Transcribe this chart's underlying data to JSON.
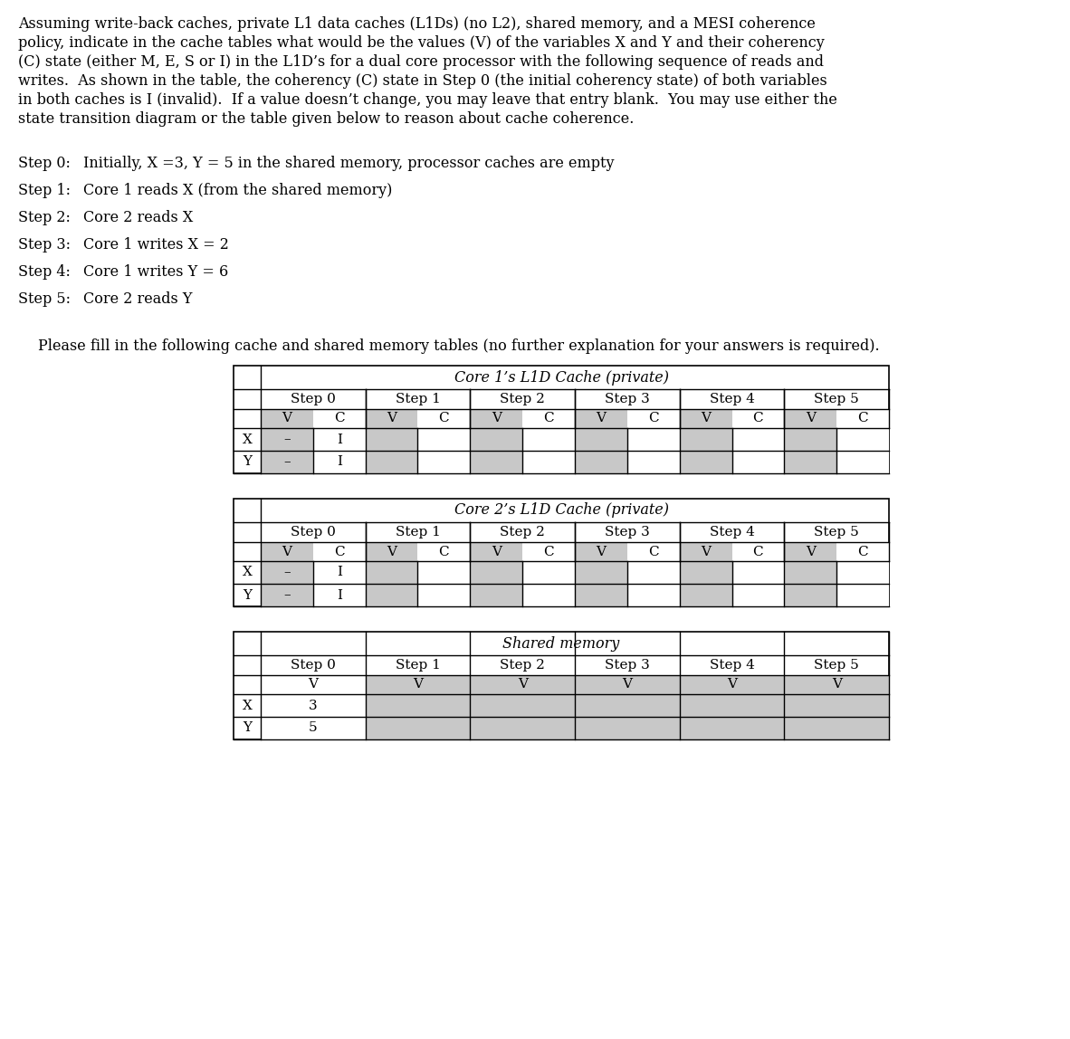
{
  "paragraph_lines": [
    "Assuming write-back caches, private L1 data caches (L1Ds) (no L2), shared memory, and a MESI coherence",
    "policy, indicate in the cache tables what would be the values (V) of the variables X and Y and their coherency",
    "(C) state (either M, E, S or I) in the L1D’s for a dual core processor with the following sequence of reads and",
    "writes.  As shown in the table, the coherency (C) state in Step 0 (the initial coherency state) of both variables",
    "in both caches is I (invalid).  If a value doesn’t change, you may leave that entry blank.  You may use either the",
    "state transition diagram or the table given below to reason about cache coherence."
  ],
  "steps": [
    [
      "Step 0:",
      "Initially, X =3, Y = 5 in the shared memory, processor caches are empty"
    ],
    [
      "Step 1:",
      "Core 1 reads X (from the shared memory)"
    ],
    [
      "Step 2:",
      "Core 2 reads X"
    ],
    [
      "Step 3:",
      "Core 1 writes X = 2"
    ],
    [
      "Step 4:",
      "Core 1 writes Y = 6"
    ],
    [
      "Step 5:",
      "Core 2 reads Y"
    ]
  ],
  "please_text": "Please fill in the following cache and shared memory tables (no further explanation for your answers is required).",
  "table1_title": "Core 1’s L1D Cache (private)",
  "table2_title": "Core 2’s L1D Cache (private)",
  "table3_title": "Shared memory",
  "step_labels": [
    "Step 0",
    "Step 1",
    "Step 2",
    "Step 3",
    "Step 4",
    "Step 5"
  ],
  "row_labels": [
    "X",
    "Y"
  ],
  "shared_step0": [
    "3",
    "5"
  ],
  "gray_color": "#c8c8c8",
  "white_color": "#ffffff",
  "black_color": "#000000",
  "fs_para": 11.5,
  "fs_step": 11.5,
  "fs_table": 11.0
}
